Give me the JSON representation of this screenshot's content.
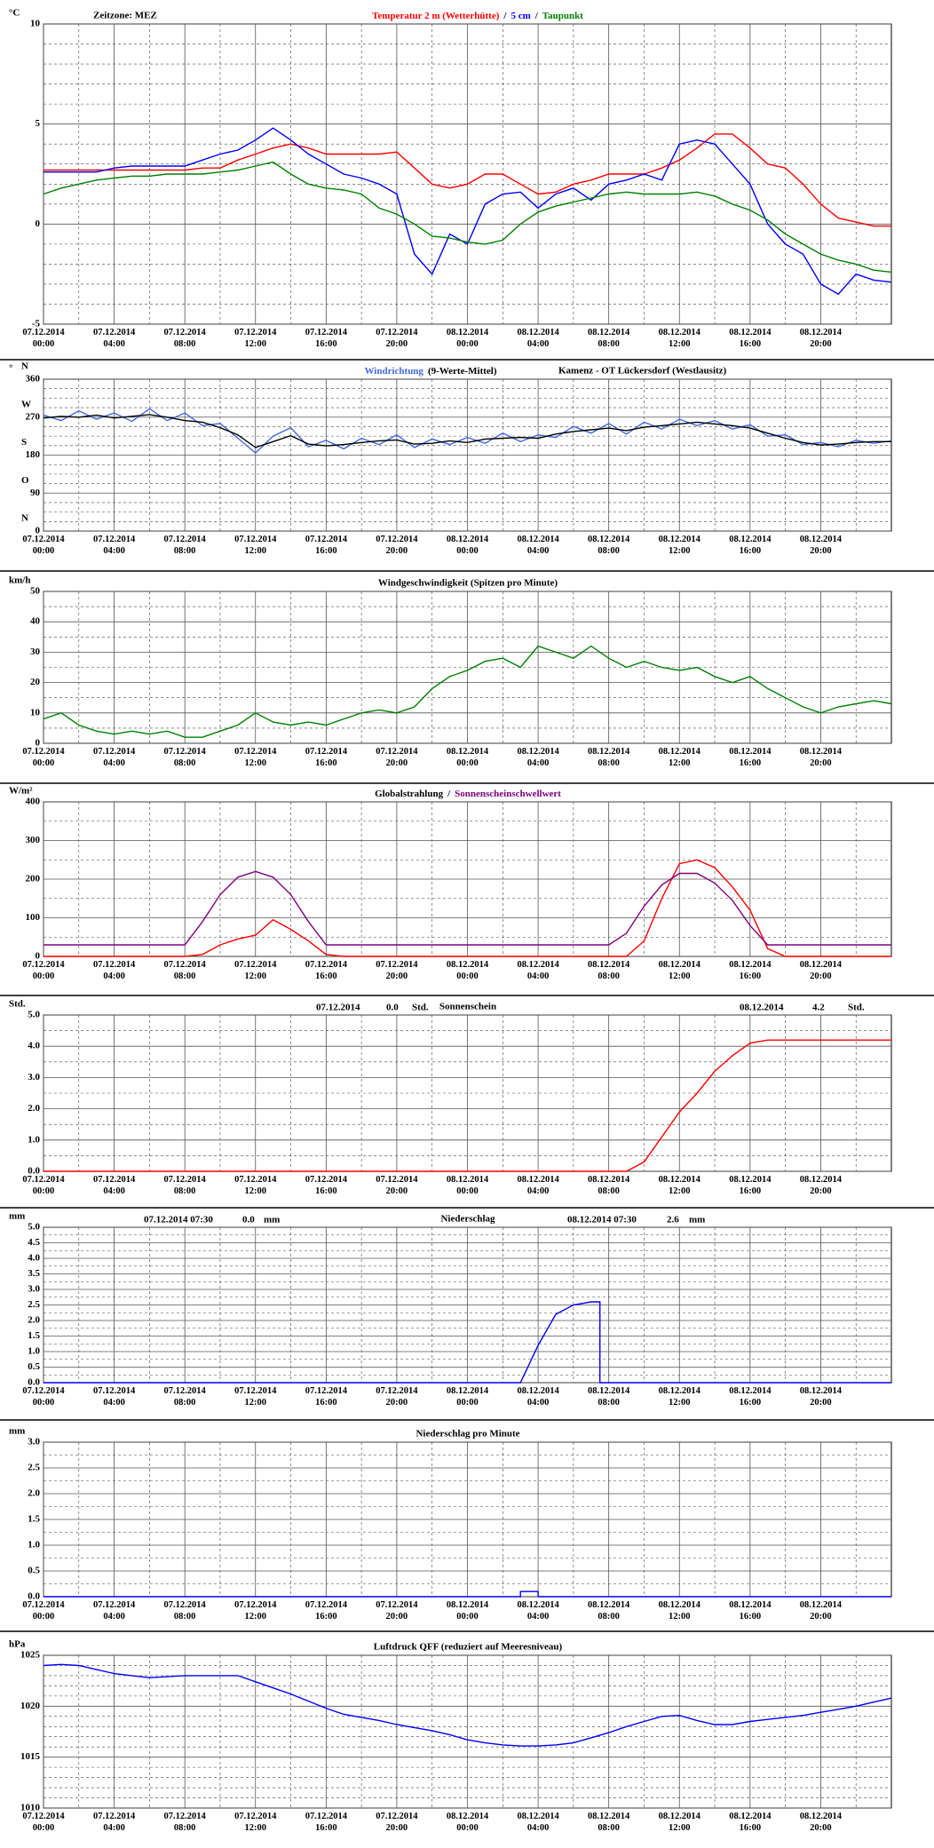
{
  "time_axis": {
    "x": [
      0,
      1,
      2,
      3,
      4,
      5,
      6,
      7,
      8,
      9,
      10,
      11,
      12,
      13,
      14,
      15,
      16,
      17,
      18,
      19,
      20,
      21,
      22,
      23,
      24,
      25,
      26,
      27,
      28,
      29,
      30,
      31,
      32,
      33,
      34,
      35,
      36,
      37,
      38,
      39,
      40,
      41,
      42,
      43,
      44,
      45,
      46,
      47,
      48
    ],
    "xlim": [
      0,
      48
    ],
    "xticks": [
      {
        "value": 0,
        "label": "07.12.2014 00:00"
      },
      {
        "value": 4,
        "label": "07.12.2014 04:00"
      },
      {
        "value": 8,
        "label": "07.12.2014 08:00"
      },
      {
        "value": 12,
        "label": "07.12.2014 12:00"
      },
      {
        "value": 16,
        "label": "07.12.2014 16:00"
      },
      {
        "value": 20,
        "label": "07.12.2014 20:00"
      },
      {
        "value": 24,
        "label": "08.12.2014 00:00"
      },
      {
        "value": 28,
        "label": "08.12.2014 04:00"
      },
      {
        "value": 32,
        "label": "08.12.2014 08:00"
      },
      {
        "value": 36,
        "label": "08.12.2014 12:00"
      },
      {
        "value": 40,
        "label": "08.12.2014 16:00"
      },
      {
        "value": 44,
        "label": "08.12.2014 20:00"
      }
    ],
    "minor_xticks": [
      2,
      6,
      10,
      14,
      18,
      22,
      26,
      30,
      34,
      38,
      42,
      46
    ]
  },
  "chart_data": [
    {
      "type": "line",
      "y_unit": "°C",
      "notes": [
        "Zeitzone: MEZ"
      ],
      "legend_separator": "/",
      "ylim": [
        -5,
        10
      ],
      "yticks": [
        -5,
        0,
        5,
        10
      ],
      "minor_yticks": [
        -4,
        -3,
        -2,
        -1,
        1,
        2,
        3,
        4,
        6,
        7,
        8,
        9
      ],
      "series": [
        {
          "name": "Temperatur 2 m (Wetterhütte)",
          "color": "#ff0000",
          "values": [
            2.7,
            2.7,
            2.7,
            2.7,
            2.7,
            2.7,
            2.7,
            2.7,
            2.7,
            2.8,
            2.8,
            3.2,
            3.5,
            3.8,
            4.0,
            3.8,
            3.5,
            3.5,
            3.5,
            3.5,
            3.6,
            2.8,
            2.0,
            1.8,
            2.0,
            2.5,
            2.5,
            2.0,
            1.5,
            1.6,
            2.0,
            2.2,
            2.5,
            2.5,
            2.5,
            2.8,
            3.2,
            3.8,
            4.5,
            4.5,
            3.8,
            3.0,
            2.8,
            2.0,
            1.0,
            0.3,
            0.1,
            -0.1,
            -0.1
          ]
        },
        {
          "name": "5 cm",
          "color": "#0000ff",
          "values": [
            2.6,
            2.6,
            2.6,
            2.6,
            2.8,
            2.9,
            2.9,
            2.9,
            2.9,
            3.2,
            3.5,
            3.7,
            4.2,
            4.8,
            4.2,
            3.5,
            3.0,
            2.5,
            2.3,
            2.0,
            1.5,
            -1.5,
            -2.5,
            -0.5,
            -1.0,
            1.0,
            1.5,
            1.6,
            0.8,
            1.5,
            1.8,
            1.2,
            2.0,
            2.2,
            2.5,
            2.2,
            4.0,
            4.2,
            4.0,
            3.0,
            2.0,
            0,
            -1.0,
            -1.5,
            -3.0,
            -3.5,
            -2.5,
            -2.8,
            -2.9
          ]
        },
        {
          "name": "Taupunkt",
          "color": "#008000",
          "values": [
            1.5,
            1.8,
            2.0,
            2.2,
            2.3,
            2.4,
            2.4,
            2.5,
            2.5,
            2.5,
            2.6,
            2.7,
            2.9,
            3.1,
            2.5,
            2.0,
            1.8,
            1.7,
            1.5,
            0.8,
            0.5,
            0,
            -0.6,
            -0.7,
            -0.9,
            -1.0,
            -0.8,
            0,
            0.6,
            0.9,
            1.1,
            1.3,
            1.5,
            1.6,
            1.5,
            1.5,
            1.5,
            1.6,
            1.4,
            1.0,
            0.7,
            0.2,
            -0.5,
            -1.0,
            -1.5,
            -1.8,
            -2.0,
            -2.3,
            -2.4
          ]
        }
      ]
    },
    {
      "type": "line",
      "y_unit": "°",
      "notes": [
        "Kamenz - OT Lückersdorf (Westlausitz)"
      ],
      "ylim": [
        0,
        360
      ],
      "yticks": [
        0,
        90,
        180,
        270,
        360
      ],
      "minor_yticks": [
        22.5,
        45,
        67.5,
        112.5,
        135,
        157.5,
        202.5,
        225,
        247.5,
        292.5,
        315,
        337.5
      ],
      "direction_labels": [
        {
          "value": 360,
          "label": "N"
        },
        {
          "value": 270,
          "label": "W"
        },
        {
          "value": 180,
          "label": "S"
        },
        {
          "value": 90,
          "label": "O"
        },
        {
          "value": 0,
          "label": "N"
        }
      ],
      "series": [
        {
          "name": "Windrichtung",
          "color": "#4169e1",
          "values": [
            275,
            262,
            285,
            265,
            280,
            260,
            290,
            262,
            280,
            250,
            255,
            220,
            185,
            225,
            245,
            200,
            215,
            195,
            220,
            205,
            228,
            198,
            218,
            205,
            222,
            208,
            232,
            212,
            228,
            222,
            248,
            232,
            255,
            230,
            258,
            242,
            265,
            250,
            262,
            242,
            252,
            225,
            228,
            205,
            210,
            200,
            215,
            208,
            214
          ]
        },
        {
          "name": "(9-Werte-Mittel)",
          "color": "#000000",
          "values": [
            268,
            272,
            270,
            275,
            268,
            272,
            276,
            270,
            262,
            258,
            245,
            228,
            198,
            212,
            226,
            206,
            202,
            205,
            210,
            214,
            216,
            206,
            208,
            214,
            210,
            218,
            220,
            222,
            220,
            230,
            236,
            240,
            244,
            238,
            246,
            250,
            254,
            258,
            254,
            250,
            244,
            232,
            220,
            210,
            204,
            206,
            210,
            212,
            212
          ]
        }
      ]
    },
    {
      "type": "line",
      "y_unit": "km/h",
      "title": "Windgeschwindigkeit (Spitzen pro Minute)",
      "ylim": [
        0,
        50
      ],
      "yticks": [
        0,
        10,
        20,
        30,
        40,
        50
      ],
      "minor_yticks": [
        5,
        15,
        25,
        35,
        45
      ],
      "series": [
        {
          "name": "Windgeschwindigkeit",
          "color": "#008000",
          "values": [
            8,
            10,
            6,
            4,
            3,
            4,
            3,
            4,
            2,
            2,
            4,
            6,
            10,
            7,
            6,
            7,
            6,
            8,
            10,
            11,
            10,
            12,
            18,
            22,
            24,
            27,
            28,
            25,
            32,
            30,
            28,
            32,
            28,
            25,
            27,
            25,
            24,
            25,
            22,
            20,
            22,
            18,
            15,
            12,
            10,
            12,
            13,
            14,
            13
          ]
        }
      ]
    },
    {
      "type": "line",
      "y_unit": "W/m²",
      "legend_separator": "/",
      "legend_colors": [
        "#000000",
        "#800080"
      ],
      "ylim": [
        0,
        400
      ],
      "yticks": [
        0,
        100,
        200,
        300,
        400
      ],
      "minor_yticks": [
        50,
        150,
        250,
        350
      ],
      "series": [
        {
          "name": "Globalstrahlung",
          "color": "#ff0000",
          "values": [
            0,
            0,
            0,
            0,
            0,
            0,
            0,
            0,
            0,
            5,
            30,
            45,
            55,
            95,
            70,
            40,
            5,
            0,
            0,
            0,
            0,
            0,
            0,
            0,
            0,
            0,
            0,
            0,
            0,
            0,
            0,
            0,
            0,
            0,
            40,
            150,
            240,
            250,
            230,
            180,
            120,
            20,
            0,
            0,
            0,
            0,
            0,
            0,
            0
          ]
        },
        {
          "name": "Sonnenscheinschwellwert",
          "color": "#800080",
          "values": [
            30,
            30,
            30,
            30,
            30,
            30,
            30,
            30,
            30,
            90,
            160,
            205,
            220,
            205,
            160,
            90,
            30,
            30,
            30,
            30,
            30,
            30,
            30,
            30,
            30,
            30,
            30,
            30,
            30,
            30,
            30,
            30,
            30,
            60,
            130,
            185,
            215,
            215,
            190,
            145,
            80,
            30,
            30,
            30,
            30,
            30,
            30,
            30,
            30
          ]
        }
      ]
    },
    {
      "type": "line",
      "y_unit": "Std.",
      "title": "Sonnenschein",
      "daily_totals": [
        {
          "date": "07.12.2014",
          "total": "0.0",
          "unit": "Std."
        },
        {
          "date": "08.12.2014",
          "total": "4.2",
          "unit": "Std."
        }
      ],
      "ylim": [
        0,
        5
      ],
      "yticks": [
        {
          "value": 0,
          "label": "0.0"
        },
        {
          "value": 1,
          "label": "1.0"
        },
        {
          "value": 2,
          "label": "2.0"
        },
        {
          "value": 3,
          "label": "3.0"
        },
        {
          "value": 4,
          "label": "4.0"
        },
        {
          "value": 5,
          "label": "5.0"
        }
      ],
      "minor_yticks": [
        0.5,
        1.5,
        2.5,
        3.5,
        4.5
      ],
      "series": [
        {
          "name": "Sonnenschein",
          "color": "#ff0000",
          "values": [
            0,
            0,
            0,
            0,
            0,
            0,
            0,
            0,
            0,
            0,
            0,
            0,
            0,
            0,
            0,
            0,
            0,
            0,
            0,
            0,
            0,
            0,
            0,
            0,
            0,
            0,
            0,
            0,
            0,
            0,
            0,
            0,
            0,
            0,
            0.3,
            1.1,
            1.9,
            2.5,
            3.2,
            3.7,
            4.1,
            4.2,
            4.2,
            4.2,
            4.2,
            4.2,
            4.2,
            4.2,
            4.2
          ]
        }
      ]
    },
    {
      "type": "line",
      "y_unit": "mm",
      "title": "Niederschlag",
      "daily_totals": [
        {
          "date": "07.12.2014 07:30",
          "total": "0.0",
          "unit": "mm"
        },
        {
          "date": "08.12.2014 07:30",
          "total": "2.6",
          "unit": "mm"
        }
      ],
      "ylim": [
        0,
        5
      ],
      "yticks": [
        {
          "value": 0,
          "label": "0.0"
        },
        {
          "value": 0.5,
          "label": "0.5"
        },
        {
          "value": 1,
          "label": "1.0"
        },
        {
          "value": 1.5,
          "label": "1.5"
        },
        {
          "value": 2,
          "label": "2.0"
        },
        {
          "value": 2.5,
          "label": "2.5"
        },
        {
          "value": 3,
          "label": "3.0"
        },
        {
          "value": 3.5,
          "label": "3.5"
        },
        {
          "value": 4,
          "label": "4.0"
        },
        {
          "value": 4.5,
          "label": "4.5"
        },
        {
          "value": 5,
          "label": "5.0"
        }
      ],
      "minor_yticks": [
        0.25,
        0.75,
        1.25,
        1.75,
        2.25,
        2.75,
        3.25,
        3.75,
        4.25,
        4.75
      ],
      "x": [
        0,
        27,
        28,
        29,
        30,
        31,
        31.5,
        31.5,
        48
      ],
      "series": [
        {
          "name": "Niederschlag",
          "color": "#0000ff",
          "values": [
            0,
            0,
            1.2,
            2.2,
            2.5,
            2.6,
            2.6,
            0,
            0
          ]
        }
      ]
    },
    {
      "type": "line",
      "y_unit": "mm",
      "title": "Niederschlag pro Minute",
      "ylim": [
        0,
        3
      ],
      "yticks": [
        {
          "value": 0,
          "label": "0.0"
        },
        {
          "value": 0.5,
          "label": "0.5"
        },
        {
          "value": 1,
          "label": "1.0"
        },
        {
          "value": 1.5,
          "label": "1.5"
        },
        {
          "value": 2,
          "label": "2.0"
        },
        {
          "value": 2.5,
          "label": "2.5"
        },
        {
          "value": 3,
          "label": "3.0"
        }
      ],
      "minor_yticks": [
        0.25,
        0.75,
        1.25,
        1.75,
        2.25,
        2.75
      ],
      "x": [
        0,
        27,
        27,
        28,
        28,
        48
      ],
      "series": [
        {
          "name": "Niederschlag pro Minute",
          "color": "#0000ff",
          "values": [
            0,
            0,
            0.1,
            0.1,
            0,
            0
          ]
        }
      ]
    },
    {
      "type": "line",
      "y_unit": "hPa",
      "title": "Luftdruck QFF (reduziert auf Meeresniveau)",
      "ylim": [
        1010,
        1025
      ],
      "yticks": [
        1010,
        1015,
        1020,
        1025
      ],
      "minor_yticks": [
        1011,
        1012,
        1013,
        1014,
        1016,
        1017,
        1018,
        1019,
        1021,
        1022,
        1023,
        1024
      ],
      "series": [
        {
          "name": "Luftdruck",
          "color": "#0000ff",
          "values": [
            1024,
            1024.1,
            1024,
            1023.6,
            1023.2,
            1023,
            1022.8,
            1022.9,
            1023,
            1023,
            1023,
            1023,
            1022.4,
            1021.8,
            1021.2,
            1020.5,
            1019.8,
            1019.2,
            1018.9,
            1018.6,
            1018.2,
            1017.9,
            1017.6,
            1017.2,
            1016.7,
            1016.4,
            1016.2,
            1016.1,
            1016.1,
            1016.2,
            1016.4,
            1016.9,
            1017.4,
            1018,
            1018.5,
            1019,
            1019.1,
            1018.6,
            1018.2,
            1018.2,
            1018.5,
            1018.7,
            1018.9,
            1019.1,
            1019.4,
            1019.7,
            1020,
            1020.4,
            1020.8
          ]
        }
      ]
    }
  ]
}
